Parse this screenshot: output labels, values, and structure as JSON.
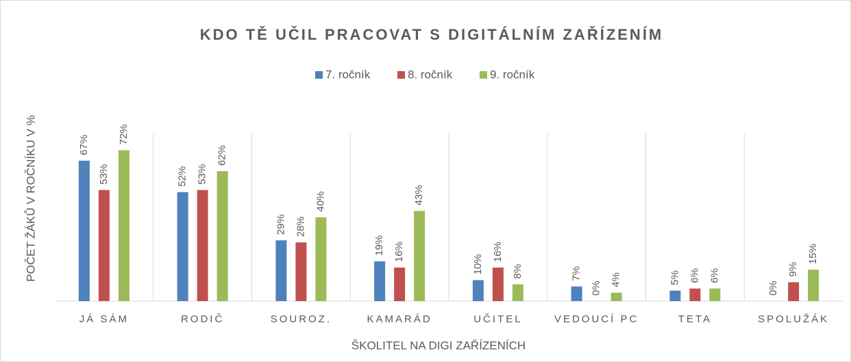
{
  "chart_data": {
    "type": "bar",
    "title": "KDO TĚ UČIL PRACOVAT S DIGITÁLNÍM ZAŘÍZENÍM",
    "x_label": "ŠKOLITEL NA DIGI ZAŘÍZENÍCH",
    "y_label": "POČET ŽÁKŮ V ROČNÍKU V %",
    "categories": [
      "JÁ SÁM",
      "RODIČ",
      "SOUROZ.",
      "KAMARÁD",
      "UČITEL",
      "VEDOUCÍ PC",
      "TETA",
      "SPOLUŽÁK"
    ],
    "series": [
      {
        "name": "7. ročník",
        "color": "#4f81bd",
        "values": [
          67,
          52,
          29,
          19,
          10,
          7,
          5,
          0
        ],
        "value_labels": [
          "67%",
          "52%",
          "29%",
          "19%",
          "10%",
          "7%",
          "5%",
          "0%"
        ]
      },
      {
        "name": "8. ročník",
        "color": "#c0504d",
        "values": [
          53,
          53,
          28,
          16,
          16,
          0,
          6,
          9
        ],
        "value_labels": [
          "53%",
          "53%",
          "28%",
          "16%",
          "16%",
          "0%",
          "6%",
          "9%"
        ]
      },
      {
        "name": "9. ročník",
        "color": "#9bbb59",
        "values": [
          72,
          62,
          40,
          43,
          8,
          4,
          6,
          15
        ],
        "value_labels": [
          "72%",
          "62%",
          "40%",
          "43%",
          "8%",
          "4%",
          "6%",
          "15%"
        ]
      }
    ],
    "ylim": [
      0,
      80
    ],
    "legend": "top"
  }
}
